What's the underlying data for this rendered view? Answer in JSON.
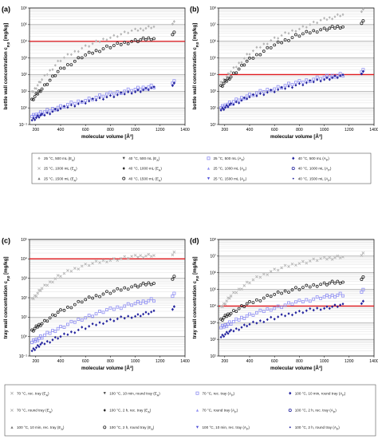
{
  "figure": {
    "colors": {
      "ea_25": "#b5b5b5",
      "ea_40": "#222222",
      "ap_25": "#8e8ef2",
      "ap_40": "#22229e",
      "threshold": "#e0191e",
      "grid": "#d9d9d9"
    }
  },
  "chart_data": [
    {
      "id": "a",
      "letter": "(a)",
      "type": "scatter",
      "xlabel": "molecular volume [Å³]",
      "ylabel": "bottle wall concentration c",
      "ylabel_sub": "P,0",
      "ylabel_unit": " [mg/kg]",
      "xlim": [
        150,
        1400
      ],
      "xticks": [
        "200",
        "400",
        "600",
        "800",
        "1000",
        "1200",
        "1400"
      ],
      "ylim_exp": [
        -1,
        6
      ],
      "yticks": [
        "10⁻¹",
        "10⁰",
        "10¹",
        "10²",
        "10³",
        "10⁴",
        "10⁵",
        "10⁶"
      ],
      "threshold": 10000,
      "series": [
        {
          "group": "EA",
          "color": "#b5b5b5",
          "marker": "diamond",
          "x": [
            170,
            250,
            400,
            600,
            800,
            1000,
            1150,
            1300
          ],
          "y": [
            8,
            50,
            800,
            5000,
            18000,
            45000,
            75000,
            110000
          ]
        },
        {
          "group": "EA",
          "color": "#222222",
          "marker": "circle",
          "x": [
            170,
            250,
            400,
            600,
            800,
            1000,
            1150,
            1300
          ],
          "y": [
            3,
            15,
            200,
            1500,
            5000,
            11000,
            16000,
            25000
          ]
        },
        {
          "group": "AP",
          "color": "#8e8ef2",
          "marker": "square",
          "x": [
            170,
            250,
            400,
            600,
            800,
            1000,
            1150,
            1300
          ],
          "y": [
            0.3,
            0.5,
            1.2,
            3,
            7,
            13,
            20,
            30
          ]
        },
        {
          "group": "AP",
          "color": "#22229e",
          "marker": "diamond",
          "x": [
            170,
            250,
            400,
            600,
            800,
            1000,
            1150,
            1300
          ],
          "y": [
            0.2,
            0.35,
            0.9,
            2.3,
            5,
            10,
            15,
            22
          ]
        }
      ]
    },
    {
      "id": "b",
      "letter": "(b)",
      "type": "scatter",
      "xlabel": "molecular volume [Å³]",
      "ylabel": "bottle wall concentration c",
      "ylabel_sub": "P,0",
      "ylabel_unit": " [mg/kg]",
      "xlim": [
        150,
        1400
      ],
      "xticks": [
        "200",
        "400",
        "600",
        "800",
        "1000",
        "1200",
        "1400"
      ],
      "ylim_exp": [
        1,
        8
      ],
      "yticks": [
        "10¹",
        "10²",
        "10³",
        "10⁴",
        "10⁵",
        "10⁶",
        "10⁷",
        "10⁸"
      ],
      "threshold": 10000,
      "series": [
        {
          "group": "EA",
          "color": "#b5b5b5",
          "marker": "diamond",
          "x": [
            170,
            250,
            400,
            600,
            800,
            1000,
            1150,
            1300
          ],
          "y": [
            3000,
            15000,
            200000,
            1500000,
            6000000,
            20000000,
            40000000,
            60000000
          ]
        },
        {
          "group": "EA",
          "color": "#222222",
          "marker": "circle",
          "x": [
            170,
            250,
            400,
            600,
            800,
            1000,
            1150,
            1300
          ],
          "y": [
            2000,
            8000,
            80000,
            600000,
            2500000,
            5500000,
            8000000,
            12000000
          ]
        },
        {
          "group": "AP",
          "color": "#8e8ef2",
          "marker": "square",
          "x": [
            170,
            250,
            400,
            600,
            800,
            1000,
            1150,
            1300
          ],
          "y": [
            100,
            200,
            600,
            1500,
            3500,
            7000,
            10000,
            14000
          ]
        },
        {
          "group": "AP",
          "color": "#22229e",
          "marker": "diamond",
          "x": [
            170,
            250,
            400,
            600,
            800,
            1000,
            1150,
            1300
          ],
          "y": [
            80,
            150,
            450,
            1100,
            2600,
            5500,
            8000,
            11000
          ]
        }
      ]
    },
    {
      "id": "c",
      "letter": "(c)",
      "type": "scatter",
      "xlabel": "molecular volume [Å³]",
      "ylabel": "tray wall concentration c",
      "ylabel_sub": "P,0",
      "ylabel_unit": " [mg/kg]",
      "xlim": [
        150,
        1400
      ],
      "xticks": [
        "200",
        "400",
        "600",
        "800",
        "1000",
        "1200",
        "1400"
      ],
      "ylim_exp": [
        -1,
        5
      ],
      "yticks": [
        "10⁻¹",
        "10⁰",
        "10¹",
        "10²",
        "10³",
        "10⁴",
        "10⁵"
      ],
      "threshold": 10000,
      "series": [
        {
          "group": "EA",
          "color": "#b5b5b5",
          "marker": "cross",
          "x": [
            170,
            250,
            400,
            600,
            800,
            1000,
            1150,
            1300
          ],
          "y": [
            80,
            300,
            1500,
            5000,
            9000,
            13000,
            15000,
            16000
          ]
        },
        {
          "group": "EA",
          "color": "#222222",
          "marker": "circle",
          "x": [
            170,
            250,
            400,
            600,
            800,
            1000,
            1150,
            1300
          ],
          "y": [
            2,
            5,
            20,
            80,
            200,
            400,
            600,
            900
          ]
        },
        {
          "group": "AP",
          "color": "#8e8ef2",
          "marker": "square",
          "x": [
            170,
            250,
            400,
            600,
            800,
            1000,
            1150,
            1300
          ],
          "y": [
            0.5,
            1,
            3,
            10,
            25,
            50,
            80,
            120
          ]
        },
        {
          "group": "AP",
          "color": "#22229e",
          "marker": "diamond",
          "x": [
            170,
            250,
            400,
            600,
            800,
            1000,
            1150,
            1300
          ],
          "y": [
            0.2,
            0.4,
            1,
            3,
            7,
            12,
            18,
            25
          ]
        }
      ]
    },
    {
      "id": "d",
      "letter": "(d)",
      "type": "scatter",
      "xlabel": "molecular volume [Å³]",
      "ylabel": "tray wall concentration c",
      "ylabel_sub": "P,0",
      "ylabel_unit": " [mg/kg]",
      "xlim": [
        150,
        1400
      ],
      "xticks": [
        "200",
        "400",
        "600",
        "800",
        "1000",
        "1200",
        "1400"
      ],
      "ylim_exp": [
        1,
        8
      ],
      "yticks": [
        "10¹",
        "10²",
        "10³",
        "10⁴",
        "10⁵",
        "10⁶",
        "10⁷",
        "10⁸"
      ],
      "threshold": 10000,
      "series": [
        {
          "group": "EA",
          "color": "#b5b5b5",
          "marker": "cross",
          "x": [
            170,
            250,
            400,
            600,
            800,
            1000,
            1150,
            1300
          ],
          "y": [
            8000,
            40000,
            300000,
            1500000,
            4000000,
            7000000,
            9000000,
            11000000
          ]
        },
        {
          "group": "EA",
          "color": "#222222",
          "marker": "circle",
          "x": [
            170,
            250,
            400,
            600,
            800,
            1000,
            1150,
            1300
          ],
          "y": [
            1500,
            4000,
            15000,
            50000,
            120000,
            220000,
            300000,
            400000
          ]
        },
        {
          "group": "AP",
          "color": "#8e8ef2",
          "marker": "square",
          "x": [
            170,
            250,
            400,
            600,
            800,
            1000,
            1150,
            1300
          ],
          "y": [
            500,
            1000,
            3000,
            8000,
            18000,
            35000,
            50000,
            70000
          ]
        },
        {
          "group": "AP",
          "color": "#22229e",
          "marker": "diamond",
          "x": [
            170,
            250,
            400,
            600,
            800,
            1000,
            1150,
            1300
          ],
          "y": [
            150,
            300,
            800,
            2000,
            4500,
            8000,
            11000,
            14000
          ]
        }
      ]
    }
  ],
  "legends": [
    {
      "id": "legend-1",
      "columns": [
        [
          {
            "label": "25 °C, 500 mL (E",
            "sub": "A",
            "tail": ")",
            "color": "#b5b5b5",
            "marker": "diamond"
          },
          {
            "label": "25 °C, 1000 mL (E",
            "sub": "A",
            "tail": ")",
            "color": "#b5b5b5",
            "marker": "cross"
          },
          {
            "label": "25 °C, 1500 mL (E",
            "sub": "A",
            "tail": ")",
            "color": "#777777",
            "marker": "triangle"
          }
        ],
        [
          {
            "label": "40 °C, 500 mL (E",
            "sub": "A",
            "tail": ")",
            "color": "#444444",
            "marker": "triangle-down"
          },
          {
            "label": "40 °C, 1000 mL (E",
            "sub": "A",
            "tail": ")",
            "color": "#222222",
            "marker": "diamond"
          },
          {
            "label": "40 °C, 1500 mL (E",
            "sub": "A",
            "tail": ")",
            "color": "#222222",
            "marker": "circle"
          }
        ],
        [
          {
            "label": "25 °C, 500 mL (A",
            "sub": "P",
            "tail": ")",
            "color": "#8e8ef2",
            "marker": "square"
          },
          {
            "label": "25 °C, 1000 mL (A",
            "sub": "P",
            "tail": ")",
            "color": "#8e8ef2",
            "marker": "triangle"
          },
          {
            "label": "25 °C, 1500 mL (A",
            "sub": "P",
            "tail": ")",
            "color": "#4f4fd9",
            "marker": "triangle-down"
          }
        ],
        [
          {
            "label": "40 °C, 500 mL (A",
            "sub": "P",
            "tail": ")",
            "color": "#22229e",
            "marker": "diamond"
          },
          {
            "label": "40 °C, 1000 mL (A",
            "sub": "P",
            "tail": ")",
            "color": "#22229e",
            "marker": "circle"
          },
          {
            "label": "40 °C, 1500 mL (A",
            "sub": "P",
            "tail": ")",
            "color": "#22229e",
            "marker": "dot"
          }
        ]
      ]
    },
    {
      "id": "legend-2",
      "columns": [
        [
          {
            "label": "70 °C, rec. tray (E",
            "sub": "A",
            "tail": ")",
            "color": "#b5b5b5",
            "marker": "cross"
          },
          {
            "label": "70 °C, round tray (E",
            "sub": "A",
            "tail": ")",
            "color": "#b5b5b5",
            "marker": "cross"
          },
          {
            "label": "100 °C, 10 min, rec. tray (E",
            "sub": "A",
            "tail": ")",
            "color": "#777777",
            "marker": "triangle"
          }
        ],
        [
          {
            "label": "100 °C, 10 min, round tray (E",
            "sub": "A",
            "tail": ")",
            "color": "#444444",
            "marker": "triangle-down"
          },
          {
            "label": "100 °C, 2 h, rec. tray (E",
            "sub": "A",
            "tail": ")",
            "color": "#222222",
            "marker": "diamond"
          },
          {
            "label": "100 °C, 2 h, round tray (E",
            "sub": "A",
            "tail": ")",
            "color": "#222222",
            "marker": "circle"
          }
        ],
        [
          {
            "label": "70 °C, rec. tray (A",
            "sub": "P",
            "tail": ")",
            "color": "#8e8ef2",
            "marker": "square"
          },
          {
            "label": "70 °C, round tray (A",
            "sub": "P",
            "tail": ")",
            "color": "#8e8ef2",
            "marker": "triangle"
          },
          {
            "label": "100 °C, 10 min, rec. tray (A",
            "sub": "P",
            "tail": ")",
            "color": "#4f4fd9",
            "marker": "triangle-down"
          }
        ],
        [
          {
            "label": "100 °C, 10 min, round tray (A",
            "sub": "P",
            "tail": ")",
            "color": "#22229e",
            "marker": "diamond"
          },
          {
            "label": "100 °C, 2 h, rec. tray (A",
            "sub": "P",
            "tail": ")",
            "color": "#22229e",
            "marker": "circle"
          },
          {
            "label": "100 °C, 2 h, round tray (A",
            "sub": "P",
            "tail": ")",
            "color": "#22229e",
            "marker": "dot"
          }
        ]
      ]
    }
  ]
}
